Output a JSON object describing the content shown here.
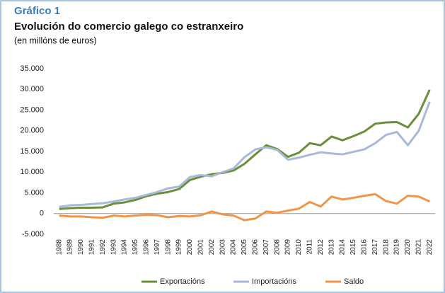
{
  "chart_data": {
    "type": "line",
    "title": "Gráfico 1",
    "subtitle": "Evolución do comercio galego co estranxeiro",
    "y_label": "(en millóns de euros)",
    "categories": [
      "1988",
      "1989",
      "1990",
      "1991",
      "1992",
      "1993",
      "1994",
      "1995",
      "1996",
      "1997",
      "1998",
      "1999",
      "2000",
      "2001",
      "2002",
      "2003",
      "2004",
      "2005",
      "2006",
      "2007",
      "2008",
      "2009",
      "2010",
      "2011",
      "2012",
      "2013",
      "2014",
      "2015",
      "2016",
      "2017",
      "2018",
      "2019",
      "2020",
      "2021",
      "2022"
    ],
    "series": [
      {
        "name": "Exportacións",
        "color": "#6a8f3a",
        "values": [
          1100,
          1300,
          1400,
          1400,
          1500,
          2400,
          2700,
          3300,
          4200,
          4800,
          5200,
          5900,
          8100,
          8900,
          9500,
          9800,
          10400,
          12000,
          14300,
          16500,
          15600,
          13700,
          14700,
          17000,
          16500,
          18600,
          17700,
          18700,
          19800,
          21700,
          22000,
          22100,
          20800,
          24100,
          29900
        ]
      },
      {
        "name": "Importacións",
        "color": "#a9b9d8",
        "values": [
          1600,
          2000,
          2100,
          2300,
          2500,
          2900,
          3400,
          3800,
          4500,
          5200,
          6100,
          6500,
          8800,
          9300,
          9000,
          10000,
          10900,
          13600,
          15500,
          16000,
          15400,
          13000,
          13500,
          14200,
          14800,
          14500,
          14300,
          14900,
          15500,
          17000,
          19000,
          19700,
          16500,
          20000,
          27000
        ]
      },
      {
        "name": "Saldo",
        "color": "#f0964a",
        "values": [
          -500,
          -700,
          -700,
          -900,
          -1000,
          -500,
          -700,
          -500,
          -300,
          -400,
          -900,
          -600,
          -700,
          -400,
          500,
          -200,
          -500,
          -1600,
          -1200,
          500,
          200,
          700,
          1200,
          2800,
          1700,
          4100,
          3400,
          3800,
          4300,
          4700,
          3000,
          2400,
          4300,
          4100,
          2900
        ]
      }
    ],
    "ylim": [
      -5000,
      35000
    ],
    "yticks": [
      {
        "value": -5000,
        "label": "-5.000"
      },
      0,
      {
        "value": 5000,
        "label": "5.000"
      },
      {
        "value": 10000,
        "label": "10.000"
      },
      {
        "value": 15000,
        "label": "15.000"
      },
      {
        "value": 20000,
        "label": "20.000"
      },
      {
        "value": 25000,
        "label": "25.000"
      },
      {
        "value": 30000,
        "label": "30.000"
      },
      {
        "value": 35000,
        "label": "35.000"
      }
    ],
    "grid": false,
    "legend": "bottom"
  }
}
